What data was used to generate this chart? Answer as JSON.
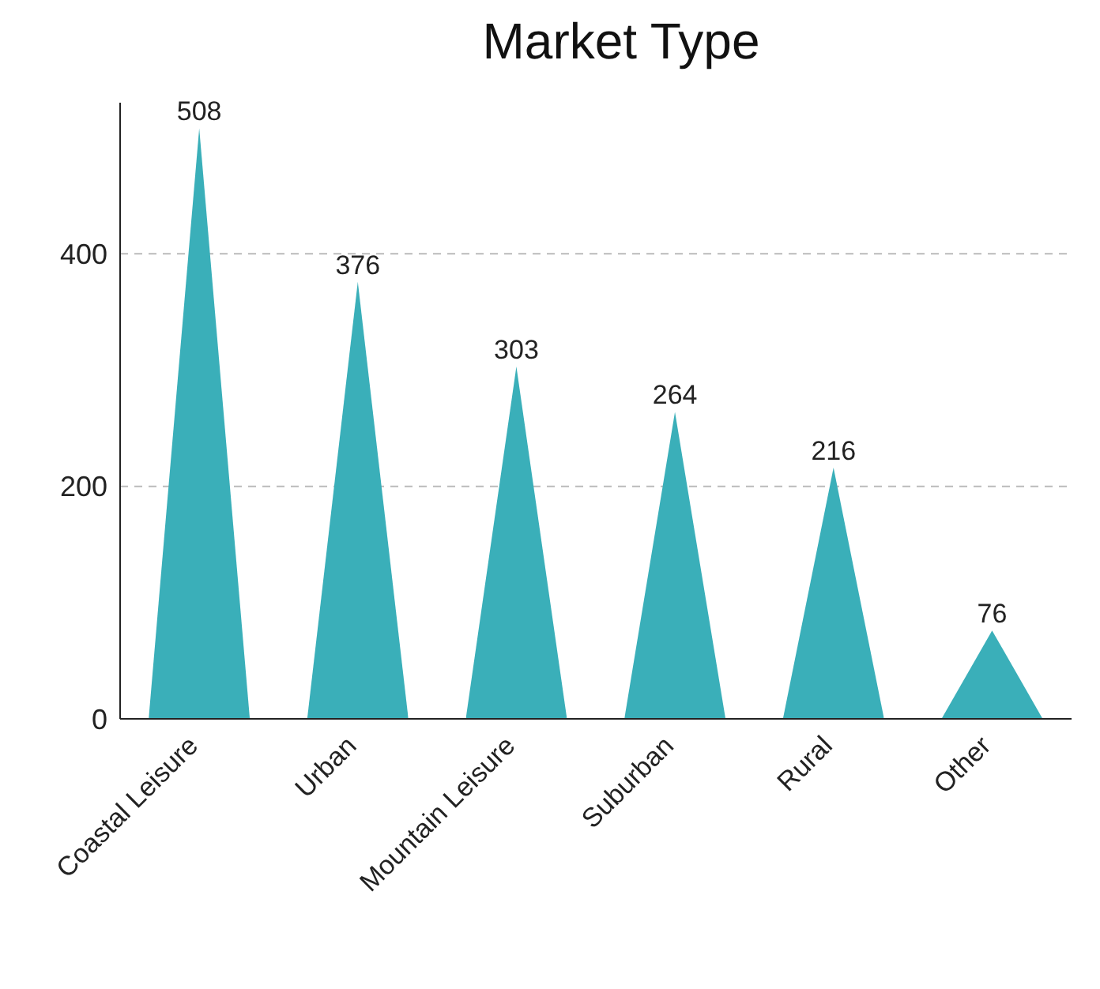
{
  "chart_data": {
    "type": "bar",
    "title": "Market Type",
    "categories": [
      "Coastal Leisure",
      "Urban",
      "Mountain Leisure",
      "Suburban",
      "Rural",
      "Other"
    ],
    "values": [
      508,
      376,
      303,
      264,
      216,
      76
    ],
    "color": "#3aafb9",
    "ylim": [
      0,
      530
    ],
    "yticks": [
      0,
      200,
      400
    ],
    "grid": "y",
    "data_labels": true
  }
}
